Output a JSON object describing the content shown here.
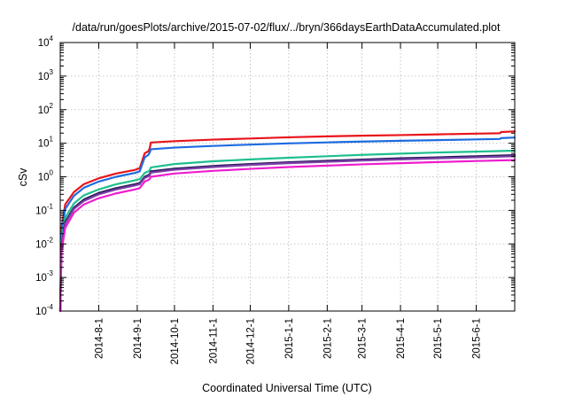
{
  "chart_data": {
    "type": "line",
    "title": "/data/run/goesPlots/archive/2015-07-02/flux/../bryn/366daysEarthDataAccumulated.plot",
    "xlabel": "Coordinated Universal Time (UTC)",
    "ylabel": "cSv",
    "yscale": "log",
    "ylim": [
      0.0001,
      10000
    ],
    "xlim": [
      "2014-07-01",
      "2015-07-02"
    ],
    "grid": true,
    "legend": "none",
    "x_ticks": [
      "2014-8-1",
      "2014-9-1",
      "2014-10-1",
      "2014-11-1",
      "2014-12-1",
      "2015-1-1",
      "2015-2-1",
      "2015-3-1",
      "2015-4-1",
      "2015-5-1",
      "2015-6-1"
    ],
    "y_ticks": [
      {
        "value": 0.0001,
        "base": "10",
        "exp": "-4"
      },
      {
        "value": 0.001,
        "base": "10",
        "exp": "-3"
      },
      {
        "value": 0.01,
        "base": "10",
        "exp": "-2"
      },
      {
        "value": 0.1,
        "base": "10",
        "exp": "-1"
      },
      {
        "value": 1,
        "base": "10",
        "exp": "0"
      },
      {
        "value": 10,
        "base": "10",
        "exp": "1"
      },
      {
        "value": 100,
        "base": "10",
        "exp": "2"
      },
      {
        "value": 1000,
        "base": "10",
        "exp": "3"
      },
      {
        "value": 10000,
        "base": "10",
        "exp": "4"
      }
    ],
    "series": [
      {
        "color": "#e8151b",
        "x": [
          "2014-07-01",
          "2014-07-02",
          "2014-07-05",
          "2014-07-12",
          "2014-07-20",
          "2014-08-01",
          "2014-08-15",
          "2014-08-30",
          "2014-09-03",
          "2014-09-07",
          "2014-09-10",
          "2014-09-11",
          "2014-09-12",
          "2014-10-01",
          "2014-11-01",
          "2014-12-01",
          "2015-01-01",
          "2015-02-01",
          "2015-03-01",
          "2015-04-01",
          "2015-05-01",
          "2015-06-01",
          "2015-06-20",
          "2015-06-21",
          "2015-07-02"
        ],
        "y": [
          0.0001,
          0.03,
          0.15,
          0.35,
          0.6,
          0.9,
          1.25,
          1.6,
          1.8,
          5.0,
          5.8,
          7.0,
          10.5,
          11.5,
          12.8,
          13.8,
          15.0,
          16.0,
          16.8,
          17.5,
          18.4,
          19.3,
          19.8,
          21.5,
          22.5
        ]
      },
      {
        "color": "#1d6be0",
        "x": [
          "2014-07-01",
          "2014-07-02",
          "2014-07-05",
          "2014-07-12",
          "2014-07-20",
          "2014-08-01",
          "2014-08-15",
          "2014-08-30",
          "2014-09-03",
          "2014-09-07",
          "2014-09-10",
          "2014-09-11",
          "2014-09-12",
          "2014-10-01",
          "2014-11-01",
          "2014-12-01",
          "2015-01-01",
          "2015-02-01",
          "2015-03-01",
          "2015-04-01",
          "2015-05-01",
          "2015-06-01",
          "2015-06-20",
          "2015-06-21",
          "2015-07-02"
        ],
        "y": [
          0.0001,
          0.02,
          0.11,
          0.27,
          0.47,
          0.72,
          1.0,
          1.3,
          1.45,
          3.8,
          4.5,
          5.3,
          6.6,
          7.4,
          8.3,
          9.1,
          9.9,
          10.6,
          11.2,
          11.8,
          12.4,
          13.0,
          13.4,
          14.2,
          14.8
        ]
      },
      {
        "color": "#1fbf8f",
        "x": [
          "2014-07-01",
          "2014-07-02",
          "2014-07-05",
          "2014-07-12",
          "2014-07-20",
          "2014-08-01",
          "2014-08-15",
          "2014-08-30",
          "2014-09-03",
          "2014-09-07",
          "2014-09-10",
          "2014-09-11",
          "2014-09-12",
          "2014-10-01",
          "2014-11-01",
          "2014-12-01",
          "2015-01-01",
          "2015-02-01",
          "2015-03-01",
          "2015-04-01",
          "2015-05-01",
          "2015-06-01",
          "2015-07-02"
        ],
        "y": [
          0.0001,
          0.012,
          0.06,
          0.16,
          0.28,
          0.42,
          0.6,
          0.78,
          0.85,
          1.3,
          1.45,
          1.55,
          1.9,
          2.4,
          2.9,
          3.3,
          3.7,
          4.1,
          4.5,
          4.9,
          5.3,
          5.6,
          6.0
        ]
      },
      {
        "color": "#241a56",
        "x": [
          "2014-07-01",
          "2014-07-02",
          "2014-07-05",
          "2014-07-12",
          "2014-07-20",
          "2014-08-01",
          "2014-08-15",
          "2014-08-30",
          "2014-09-03",
          "2014-09-07",
          "2014-09-10",
          "2014-09-11",
          "2014-09-12",
          "2014-10-01",
          "2014-11-01",
          "2014-12-01",
          "2015-01-01",
          "2015-02-01",
          "2015-03-01",
          "2015-04-01",
          "2015-05-01",
          "2015-06-01",
          "2015-07-02"
        ],
        "y": [
          0.0001,
          0.009,
          0.045,
          0.12,
          0.21,
          0.33,
          0.46,
          0.6,
          0.65,
          1.0,
          1.12,
          1.2,
          1.45,
          1.75,
          2.1,
          2.4,
          2.7,
          3.0,
          3.25,
          3.55,
          3.8,
          4.1,
          4.4
        ]
      },
      {
        "color": "#7d3fa8",
        "x": [
          "2014-07-01",
          "2014-07-02",
          "2014-07-05",
          "2014-07-12",
          "2014-07-20",
          "2014-08-01",
          "2014-08-15",
          "2014-08-30",
          "2014-09-03",
          "2014-09-07",
          "2014-09-10",
          "2014-09-11",
          "2014-09-12",
          "2014-10-01",
          "2014-11-01",
          "2014-12-01",
          "2015-01-01",
          "2015-02-01",
          "2015-03-01",
          "2015-04-01",
          "2015-05-01",
          "2015-06-01",
          "2015-07-02"
        ],
        "y": [
          0.0001,
          0.008,
          0.04,
          0.11,
          0.19,
          0.3,
          0.42,
          0.55,
          0.6,
          0.92,
          1.03,
          1.1,
          1.33,
          1.62,
          1.95,
          2.25,
          2.55,
          2.8,
          3.05,
          3.3,
          3.55,
          3.8,
          4.1
        ]
      },
      {
        "color": "#ee1cce",
        "x": [
          "2014-07-01",
          "2014-07-02",
          "2014-07-05",
          "2014-07-12",
          "2014-07-20",
          "2014-08-01",
          "2014-08-15",
          "2014-08-30",
          "2014-09-03",
          "2014-09-07",
          "2014-09-10",
          "2014-09-11",
          "2014-09-12",
          "2014-10-01",
          "2014-11-01",
          "2014-12-01",
          "2015-01-01",
          "2015-02-01",
          "2015-03-01",
          "2015-04-01",
          "2015-05-01",
          "2015-06-01",
          "2015-07-02"
        ],
        "y": [
          0.0001,
          0.006,
          0.03,
          0.085,
          0.15,
          0.23,
          0.32,
          0.42,
          0.46,
          0.72,
          0.8,
          0.86,
          1.0,
          1.25,
          1.5,
          1.72,
          1.95,
          2.15,
          2.35,
          2.55,
          2.75,
          2.95,
          3.15
        ]
      }
    ]
  }
}
